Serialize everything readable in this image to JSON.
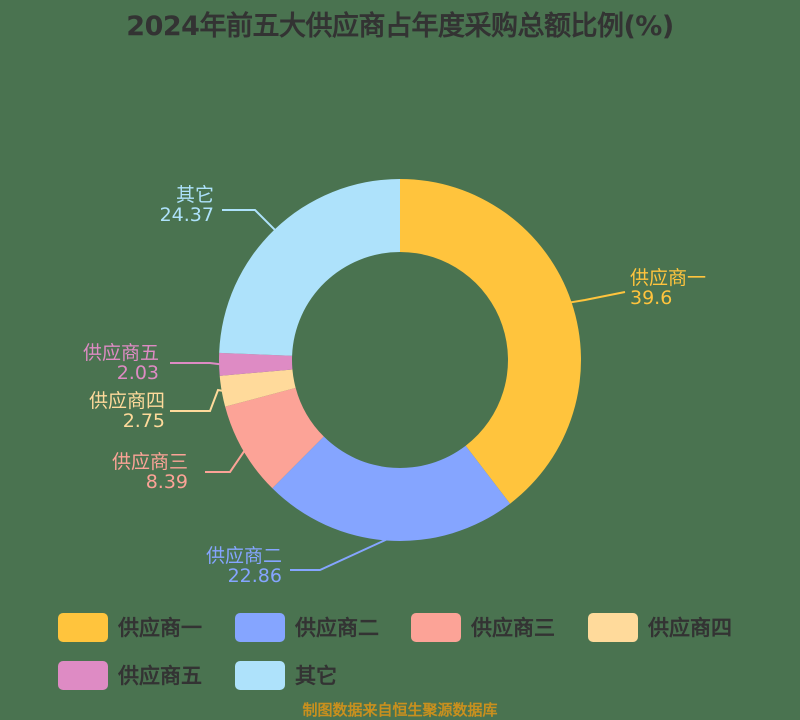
{
  "title": "2024年前五大供应商占年度采购总额比例(%)",
  "footer": "制图数据来自恒生聚源数据库",
  "chart_data": {
    "type": "pie",
    "variant": "donut",
    "title": "2024年前五大供应商占年度采购总额比例(%)",
    "categories": [
      "供应商一",
      "供应商二",
      "供应商三",
      "供应商四",
      "供应商五",
      "其它"
    ],
    "values": [
      39.6,
      22.86,
      8.39,
      2.75,
      2.03,
      24.37
    ],
    "colors": [
      "#ffc43d",
      "#85a5ff",
      "#fca397",
      "#ffda9b",
      "#de8bc4",
      "#aee2fb"
    ],
    "legend_position": "bottom",
    "start_angle": "12 o'clock, clockwise"
  },
  "labels": [
    {
      "name": "供应商一",
      "value": "39.6"
    },
    {
      "name": "供应商二",
      "value": "22.86"
    },
    {
      "name": "供应商三",
      "value": "8.39"
    },
    {
      "name": "供应商四",
      "value": "2.75"
    },
    {
      "name": "供应商五",
      "value": "2.03"
    },
    {
      "name": "其它",
      "value": "24.37"
    }
  ],
  "legend": [
    {
      "label": "供应商一",
      "color": "#ffc43d"
    },
    {
      "label": "供应商二",
      "color": "#85a5ff"
    },
    {
      "label": "供应商三",
      "color": "#fca397"
    },
    {
      "label": "供应商四",
      "color": "#ffda9b"
    },
    {
      "label": "供应商五",
      "color": "#de8bc4"
    },
    {
      "label": "其它",
      "color": "#aee2fb"
    }
  ]
}
